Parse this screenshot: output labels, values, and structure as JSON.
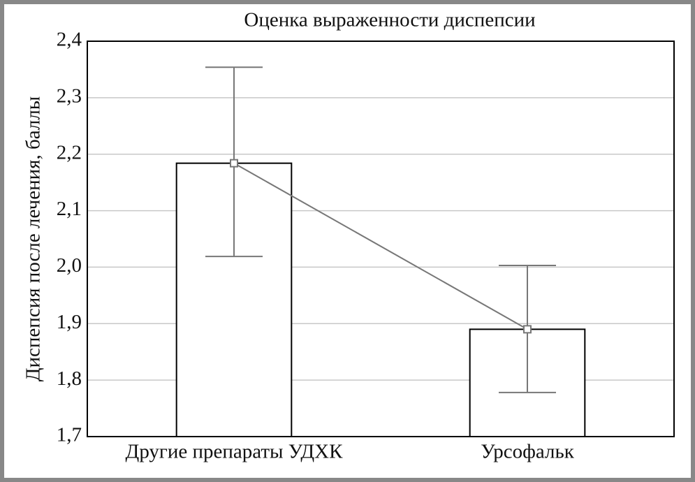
{
  "chart_data": {
    "type": "bar",
    "title": "Оценка выраженности диспепсии",
    "y_label": "Диспепсия после лечения, баллы",
    "categories": [
      "Другие препараты УДХК",
      "Урсофальк"
    ],
    "values": [
      2.184,
      1.89
    ],
    "lower": [
      2.019,
      1.778
    ],
    "upper": [
      2.354,
      2.003
    ],
    "color": "#ffffff",
    "line_color": "#777777",
    "ylim": [
      1.7,
      2.4
    ],
    "yticks": [
      {
        "value": 1.7,
        "label": "1,7"
      },
      {
        "value": 1.8,
        "label": "1,8"
      },
      {
        "value": 1.9,
        "label": "1,9"
      },
      {
        "value": 2.0,
        "label": "2,0"
      },
      {
        "value": 2.1,
        "label": "2,1"
      },
      {
        "value": 2.2,
        "label": "2,2"
      },
      {
        "value": 2.3,
        "label": "2,3"
      },
      {
        "value": 2.4,
        "label": "2,4"
      }
    ],
    "grid": true
  }
}
